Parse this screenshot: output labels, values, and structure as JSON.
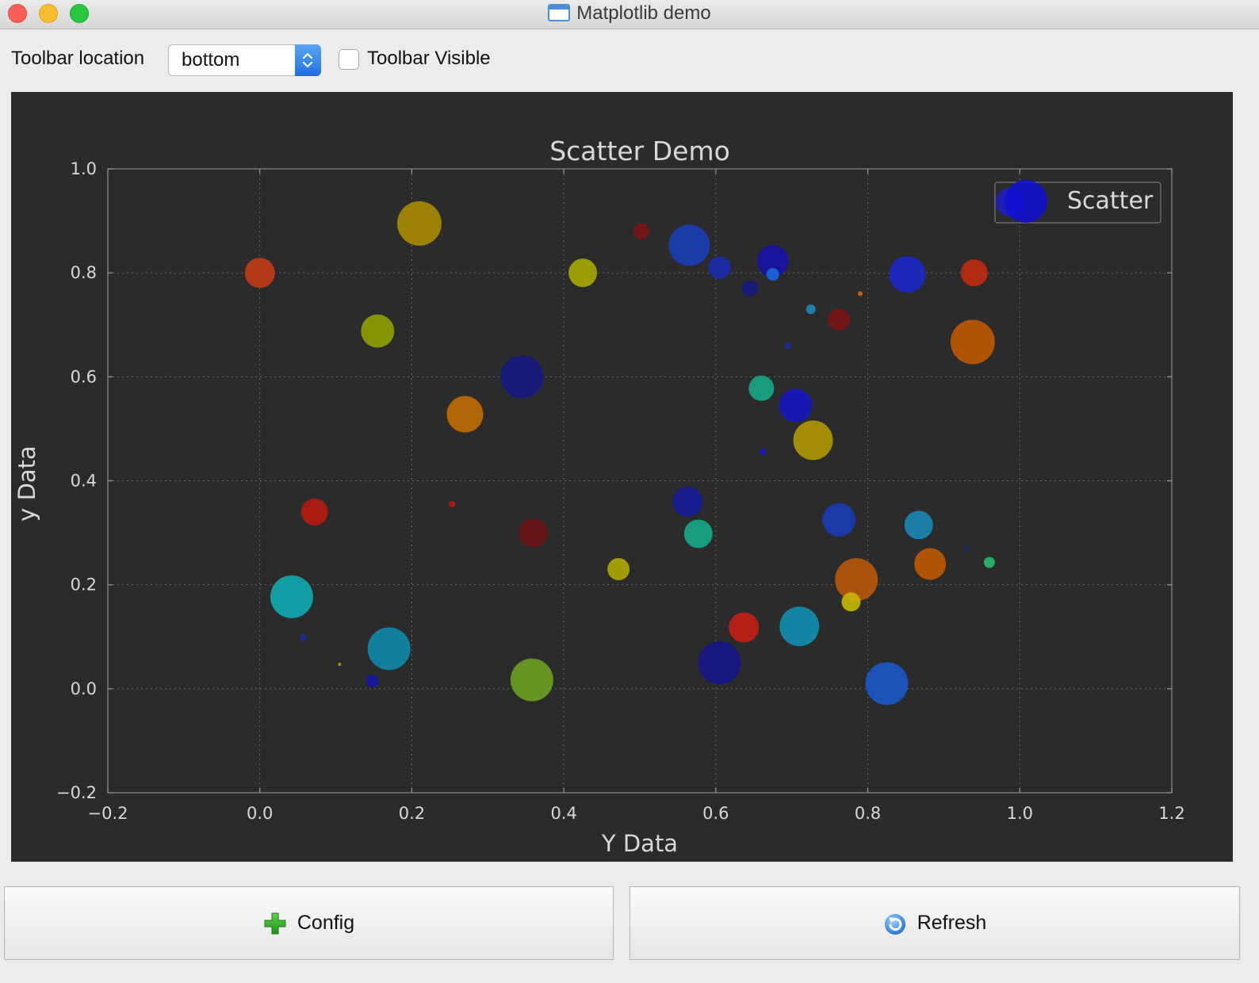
{
  "window": {
    "title": "Matplotlib demo"
  },
  "controls": {
    "toolbar_location_label": "Toolbar location",
    "toolbar_location_value": "bottom",
    "toolbar_visible_label": "Toolbar Visible",
    "toolbar_visible_checked": false
  },
  "buttons": {
    "config_label": "Config",
    "config_icon": "plus-icon",
    "refresh_label": "Refresh",
    "refresh_icon": "refresh-icon"
  },
  "chart_data": {
    "type": "scatter",
    "title": "Scatter Demo",
    "xlabel": "Y Data",
    "ylabel": "y Data",
    "xlim": [
      -0.2,
      1.2
    ],
    "ylim": [
      -0.2,
      1.0
    ],
    "xticks": [
      "−0.2",
      "0.0",
      "0.2",
      "0.4",
      "0.6",
      "0.8",
      "1.0",
      "1.2"
    ],
    "yticks": [
      "−0.2",
      "0.0",
      "0.2",
      "0.4",
      "0.6",
      "0.8",
      "1.0"
    ],
    "grid": true,
    "legend": {
      "location": "upper right",
      "entries": [
        "Scatter"
      ]
    },
    "background": "#2b2b2b",
    "series": [
      {
        "name": "Scatter",
        "points": [
          {
            "x": 0.0,
            "y": 0.8,
            "r": 19,
            "color": "#c23b16"
          },
          {
            "x": 0.21,
            "y": 0.895,
            "r": 28,
            "color": "#a88b00"
          },
          {
            "x": 0.502,
            "y": 0.88,
            "r": 10,
            "color": "#7a1414"
          },
          {
            "x": 0.565,
            "y": 0.853,
            "r": 26,
            "color": "#1a3fb8"
          },
          {
            "x": 0.605,
            "y": 0.81,
            "r": 14,
            "color": "#1a2bb0"
          },
          {
            "x": 0.675,
            "y": 0.823,
            "r": 20,
            "color": "#1712a8"
          },
          {
            "x": 0.675,
            "y": 0.797,
            "r": 8,
            "color": "#1a66e0"
          },
          {
            "x": 0.645,
            "y": 0.77,
            "r": 10,
            "color": "#151a80"
          },
          {
            "x": 0.425,
            "y": 0.8,
            "r": 18,
            "color": "#a8a800"
          },
          {
            "x": 0.852,
            "y": 0.797,
            "r": 23,
            "color": "#1a28c8"
          },
          {
            "x": 0.94,
            "y": 0.8,
            "r": 17,
            "color": "#c02a10"
          },
          {
            "x": 0.79,
            "y": 0.76,
            "r": 3,
            "color": "#d86010"
          },
          {
            "x": 0.725,
            "y": 0.73,
            "r": 6,
            "color": "#1a8ab8"
          },
          {
            "x": 0.762,
            "y": 0.71,
            "r": 14,
            "color": "#7a1414"
          },
          {
            "x": 0.155,
            "y": 0.688,
            "r": 21,
            "color": "#8ea000"
          },
          {
            "x": 0.938,
            "y": 0.667,
            "r": 28,
            "color": "#c05a00"
          },
          {
            "x": 0.695,
            "y": 0.66,
            "r": 4,
            "color": "#1a2aa0"
          },
          {
            "x": 0.345,
            "y": 0.6,
            "r": 27,
            "color": "#151880"
          },
          {
            "x": 0.66,
            "y": 0.578,
            "r": 16,
            "color": "#16a888"
          },
          {
            "x": 0.705,
            "y": 0.545,
            "r": 21,
            "color": "#1515c0"
          },
          {
            "x": 0.27,
            "y": 0.528,
            "r": 23,
            "color": "#c06c00"
          },
          {
            "x": 0.728,
            "y": 0.478,
            "r": 25,
            "color": "#b09800"
          },
          {
            "x": 0.662,
            "y": 0.456,
            "r": 4,
            "color": "#1515c8"
          },
          {
            "x": 0.072,
            "y": 0.34,
            "r": 17,
            "color": "#b81a10"
          },
          {
            "x": 0.253,
            "y": 0.355,
            "r": 4,
            "color": "#b81a10"
          },
          {
            "x": 0.563,
            "y": 0.36,
            "r": 19,
            "color": "#151b9a"
          },
          {
            "x": 0.36,
            "y": 0.3,
            "r": 18,
            "color": "#6a1414"
          },
          {
            "x": 0.577,
            "y": 0.298,
            "r": 18,
            "color": "#16a888"
          },
          {
            "x": 0.762,
            "y": 0.325,
            "r": 21,
            "color": "#1a3cb8"
          },
          {
            "x": 0.867,
            "y": 0.315,
            "r": 18,
            "color": "#1a88b8"
          },
          {
            "x": 0.882,
            "y": 0.24,
            "r": 20,
            "color": "#c05a00"
          },
          {
            "x": 0.93,
            "y": 0.27,
            "r": 2,
            "color": "#1515c8"
          },
          {
            "x": 0.96,
            "y": 0.243,
            "r": 7,
            "color": "#28b870"
          },
          {
            "x": 0.472,
            "y": 0.23,
            "r": 14,
            "color": "#b0a800"
          },
          {
            "x": 0.785,
            "y": 0.21,
            "r": 27,
            "color": "#b8580a"
          },
          {
            "x": 0.778,
            "y": 0.167,
            "r": 12,
            "color": "#c8b800"
          },
          {
            "x": 0.042,
            "y": 0.177,
            "r": 27,
            "color": "#10a8b0"
          },
          {
            "x": 0.637,
            "y": 0.118,
            "r": 19,
            "color": "#c41e12"
          },
          {
            "x": 0.71,
            "y": 0.12,
            "r": 25,
            "color": "#1090b0"
          },
          {
            "x": 0.057,
            "y": 0.098,
            "r": 4,
            "color": "#1a28b0"
          },
          {
            "x": 0.17,
            "y": 0.077,
            "r": 27,
            "color": "#1088a8"
          },
          {
            "x": 0.105,
            "y": 0.047,
            "r": 2,
            "color": "#b0a000"
          },
          {
            "x": 0.605,
            "y": 0.05,
            "r": 27,
            "color": "#15158a"
          },
          {
            "x": 0.148,
            "y": 0.015,
            "r": 8,
            "color": "#1515a8"
          },
          {
            "x": 0.358,
            "y": 0.017,
            "r": 27,
            "color": "#6aa020"
          },
          {
            "x": 0.825,
            "y": 0.01,
            "r": 27,
            "color": "#1a58c8"
          }
        ]
      }
    ]
  }
}
